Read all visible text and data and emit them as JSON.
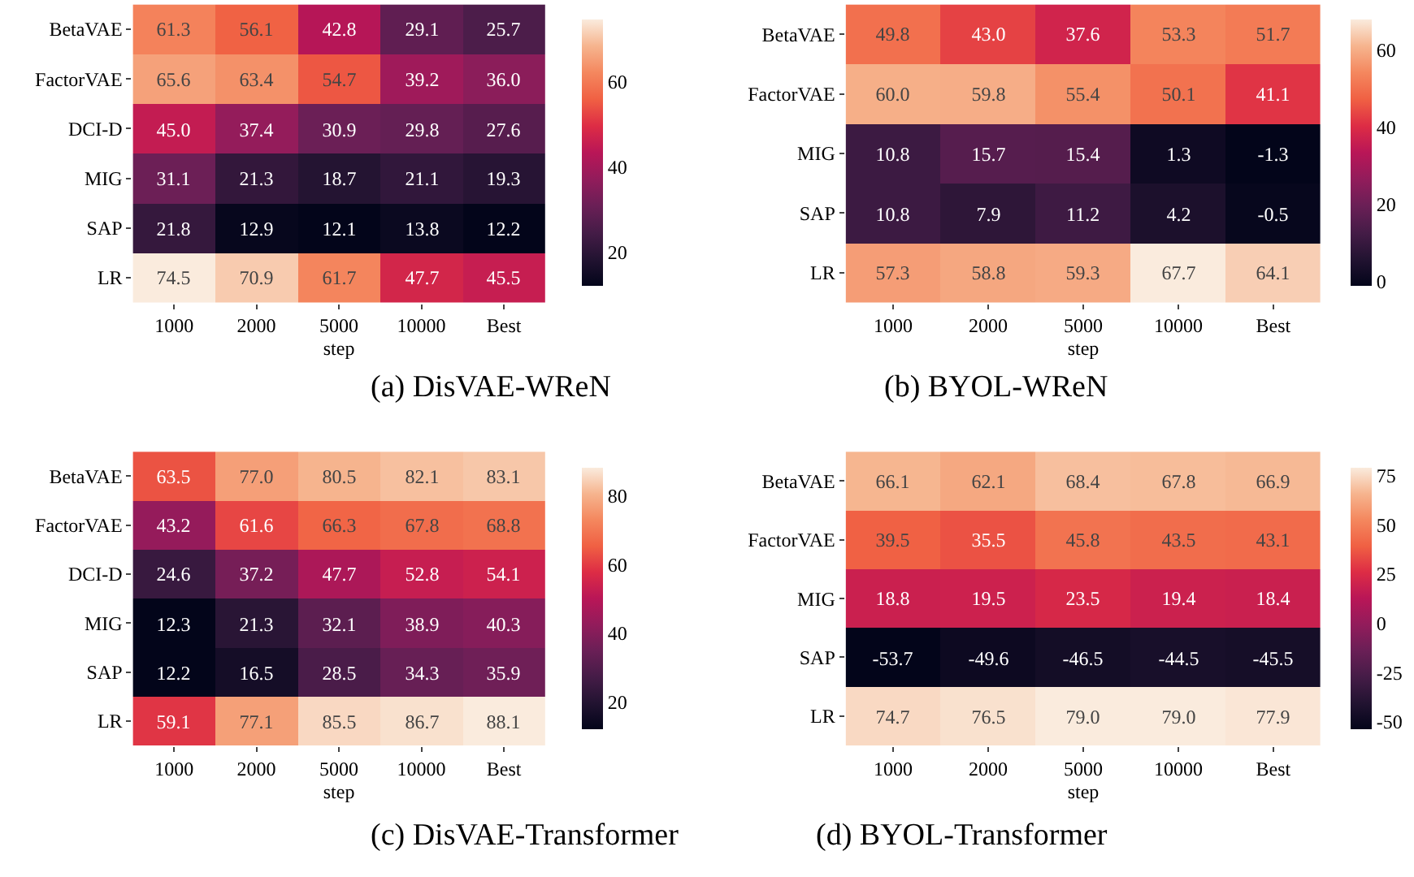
{
  "chart_data": [
    {
      "type": "heatmap",
      "title": "(a) DisVAE-WReN",
      "xlabel": "step",
      "categories": [
        "1000",
        "2000",
        "5000",
        "10000",
        "Best"
      ],
      "y_categories": [
        "BetaVAE",
        "FactorVAE",
        "DCI-D",
        "MIG",
        "SAP",
        "LR"
      ],
      "cells": [
        [
          61.3,
          56.1,
          42.8,
          29.1,
          25.7
        ],
        [
          65.6,
          63.4,
          54.7,
          39.2,
          36.0
        ],
        [
          45.0,
          37.4,
          30.9,
          29.8,
          27.6
        ],
        [
          31.1,
          21.3,
          18.7,
          21.1,
          19.3
        ],
        [
          21.8,
          12.9,
          12.1,
          13.8,
          12.2
        ],
        [
          74.5,
          70.9,
          61.7,
          47.7,
          45.5
        ]
      ],
      "cell_labels": [
        [
          "61.3",
          "56.1",
          "42.8",
          "29.1",
          "25.7"
        ],
        [
          "65.6",
          "63.4",
          "54.7",
          "39.2",
          "36.0"
        ],
        [
          "45.0",
          "37.4",
          "30.9",
          "29.8",
          "27.6"
        ],
        [
          "31.1",
          "21.3",
          "18.7",
          "21.1",
          "19.3"
        ],
        [
          "21.8",
          "12.9",
          "12.1",
          "13.8",
          "12.2"
        ],
        [
          "74.5",
          "70.9",
          "61.7",
          "47.7",
          "45.5"
        ]
      ],
      "clim": [
        12.1,
        74.5
      ],
      "cticks": [
        20,
        40,
        60
      ]
    },
    {
      "type": "heatmap",
      "title": "(b) BYOL-WReN",
      "xlabel": "step",
      "categories": [
        "1000",
        "2000",
        "5000",
        "10000",
        "Best"
      ],
      "y_categories": [
        "BetaVAE",
        "FactorVAE",
        "MIG",
        "SAP",
        "LR"
      ],
      "cells": [
        [
          49.8,
          43.0,
          37.6,
          53.3,
          51.7
        ],
        [
          60.0,
          59.8,
          55.4,
          50.1,
          41.1
        ],
        [
          10.8,
          15.7,
          15.4,
          1.3,
          -1.3
        ],
        [
          10.8,
          7.9,
          11.2,
          4.2,
          -0.5
        ],
        [
          57.3,
          58.8,
          59.3,
          67.7,
          64.1
        ]
      ],
      "cell_labels": [
        [
          "49.8",
          "43.0",
          "37.6",
          "53.3",
          "51.7"
        ],
        [
          "60.0",
          "59.8",
          "55.4",
          "50.1",
          "41.1"
        ],
        [
          "10.8",
          "15.7",
          "15.4",
          "1.3",
          "-1.3"
        ],
        [
          "10.8",
          "7.9",
          "11.2",
          "4.2",
          "-0.5"
        ],
        [
          "57.3",
          "58.8",
          "59.3",
          "67.7",
          "64.1"
        ]
      ],
      "clim": [
        -1.3,
        67.7
      ],
      "cticks": [
        0,
        20,
        40,
        60
      ]
    },
    {
      "type": "heatmap",
      "title": "(c) DisVAE-Transformer",
      "xlabel": "step",
      "categories": [
        "1000",
        "2000",
        "5000",
        "10000",
        "Best"
      ],
      "y_categories": [
        "BetaVAE",
        "FactorVAE",
        "DCI-D",
        "MIG",
        "SAP",
        "LR"
      ],
      "cells": [
        [
          63.5,
          77.0,
          80.5,
          82.1,
          83.1
        ],
        [
          43.2,
          61.6,
          66.3,
          67.8,
          68.8
        ],
        [
          24.6,
          37.2,
          47.7,
          52.8,
          54.1
        ],
        [
          12.3,
          21.3,
          32.1,
          38.9,
          40.3
        ],
        [
          12.2,
          16.5,
          28.5,
          34.3,
          35.9
        ],
        [
          59.1,
          77.1,
          85.5,
          86.7,
          88.1
        ]
      ],
      "cell_labels": [
        [
          "63.5",
          "77.0",
          "80.5",
          "82.1",
          "83.1"
        ],
        [
          "43.2",
          "61.6",
          "66.3",
          "67.8",
          "68.8"
        ],
        [
          "24.6",
          "37.2",
          "47.7",
          "52.8",
          "54.1"
        ],
        [
          "12.3",
          "21.3",
          "32.1",
          "38.9",
          "40.3"
        ],
        [
          "12.2",
          "16.5",
          "28.5",
          "34.3",
          "35.9"
        ],
        [
          "59.1",
          "77.1",
          "85.5",
          "86.7",
          "88.1"
        ]
      ],
      "clim": [
        12.2,
        88.1
      ],
      "cticks": [
        20,
        40,
        60,
        80
      ]
    },
    {
      "type": "heatmap",
      "title": "(d) BYOL-Transformer",
      "xlabel": "step",
      "categories": [
        "1000",
        "2000",
        "5000",
        "10000",
        "Best"
      ],
      "y_categories": [
        "BetaVAE",
        "FactorVAE",
        "MIG",
        "SAP",
        "LR"
      ],
      "cells": [
        [
          66.1,
          62.1,
          68.4,
          67.8,
          66.9
        ],
        [
          39.5,
          35.5,
          45.8,
          43.5,
          43.1
        ],
        [
          18.8,
          19.5,
          23.5,
          19.4,
          18.4
        ],
        [
          -53.7,
          -49.6,
          -46.5,
          -44.5,
          -45.5
        ],
        [
          74.7,
          76.5,
          79.0,
          79.0,
          77.9
        ]
      ],
      "cell_labels": [
        [
          "66.1",
          "62.1",
          "68.4",
          "67.8",
          "66.9"
        ],
        [
          "39.5",
          "35.5",
          "45.8",
          "43.5",
          "43.1"
        ],
        [
          "18.8",
          "19.5",
          "23.5",
          "19.4",
          "18.4"
        ],
        [
          "-53.7",
          "-49.6",
          "-46.5",
          "-44.5",
          "-45.5"
        ],
        [
          "74.7",
          "76.5",
          "79.0",
          "79.0",
          "77.9"
        ]
      ],
      "clim": [
        -53.7,
        79.0
      ],
      "cticks": [
        -50,
        -25,
        0,
        25,
        50,
        75
      ]
    }
  ]
}
